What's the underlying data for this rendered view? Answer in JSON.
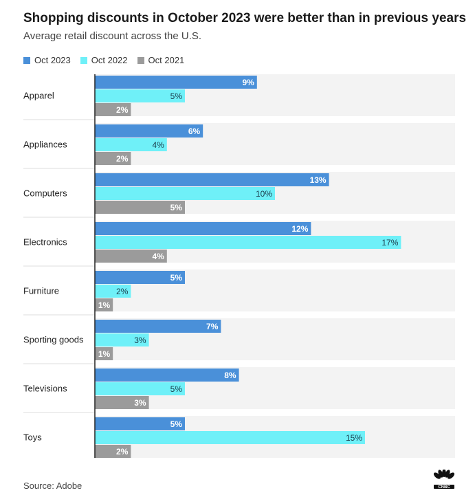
{
  "title": "Shopping discounts in October 2023 were better than in previous years",
  "subtitle": "Average retail discount across the U.S.",
  "source": "Source: Adobe",
  "logo_text": "CNBC",
  "chart_data": {
    "type": "bar",
    "orientation": "horizontal",
    "categories": [
      "Apparel",
      "Appliances",
      "Computers",
      "Electronics",
      "Furniture",
      "Sporting goods",
      "Televisions",
      "Toys"
    ],
    "series": [
      {
        "name": "Oct 2023",
        "color": "#4a90d9",
        "label_color": "#ffffff",
        "values": [
          9,
          6,
          13,
          12,
          5,
          7,
          8,
          5
        ],
        "labels": [
          "9%",
          "6%",
          "13%",
          "12%",
          "5%",
          "7%",
          "8%",
          "5%"
        ]
      },
      {
        "name": "Oct 2022",
        "color": "#6ff0f8",
        "label_color": "#1a3a4a",
        "values": [
          5,
          4,
          10,
          17,
          2,
          3,
          5,
          15
        ],
        "labels": [
          "5%",
          "4%",
          "10%",
          "17%",
          "2%",
          "3%",
          "5%",
          "15%"
        ]
      },
      {
        "name": "Oct 2021",
        "color": "#9b9b9b",
        "label_color": "#ffffff",
        "values": [
          2,
          2,
          5,
          4,
          1,
          1,
          3,
          2
        ],
        "labels": [
          "2%",
          "2%",
          "5%",
          "4%",
          "1%",
          "1%",
          "3%",
          "2%"
        ]
      }
    ],
    "xlim": [
      0,
      20
    ],
    "legend_position": "top-left",
    "grid": false
  }
}
